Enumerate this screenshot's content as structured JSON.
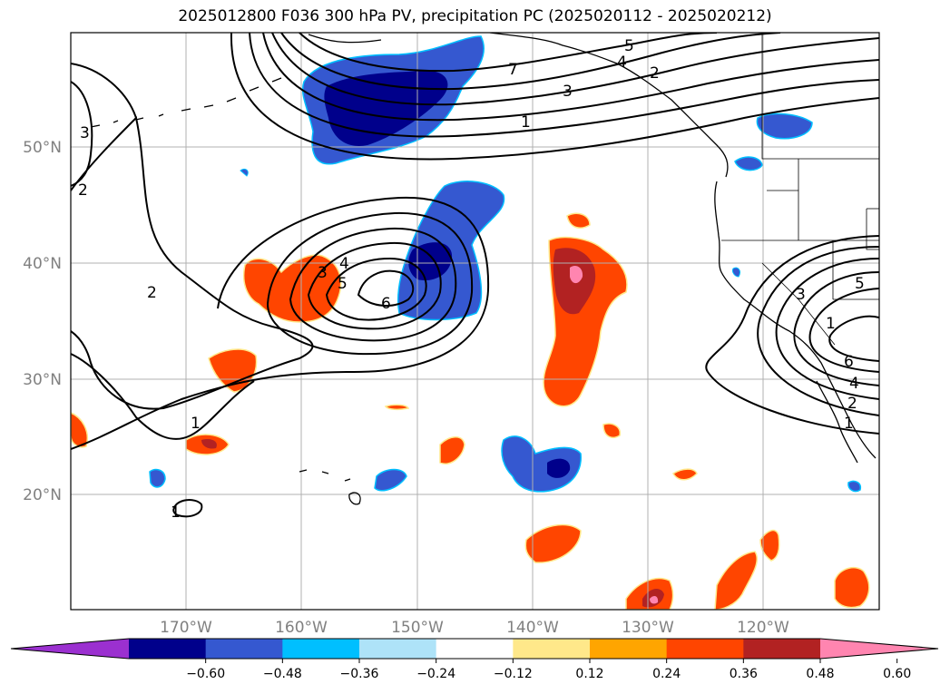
{
  "title": "2025012800 F036 300 hPa PV, precipitation PC (2025020112 - 2025020212)",
  "lat_labels": [
    "50°N",
    "40°N",
    "30°N",
    "20°N"
  ],
  "lon_labels": [
    "170°W",
    "160°W",
    "150°W",
    "140°W",
    "130°W",
    "120°W"
  ],
  "colorbar": {
    "tick_labels": [
      "−0.60",
      "−0.48",
      "−0.36",
      "−0.24",
      "−0.12",
      "0.12",
      "0.24",
      "0.36",
      "0.48",
      "0.60"
    ],
    "colors": [
      "#9b30d0",
      "#00008b",
      "#3558d0",
      "#00bfff",
      "#aee3f8",
      "#ffffff",
      "#ffe88a",
      "#ffa500",
      "#ff4500",
      "#b22222",
      "#ff85b0"
    ]
  },
  "pv_contour_labels": [
    "3",
    "2",
    "2",
    "1",
    "1",
    "1",
    "3",
    "7",
    "5",
    "4",
    "2",
    "3",
    "4",
    "5",
    "6",
    "3",
    "5",
    "1",
    "6",
    "4",
    "2",
    "1"
  ]
}
